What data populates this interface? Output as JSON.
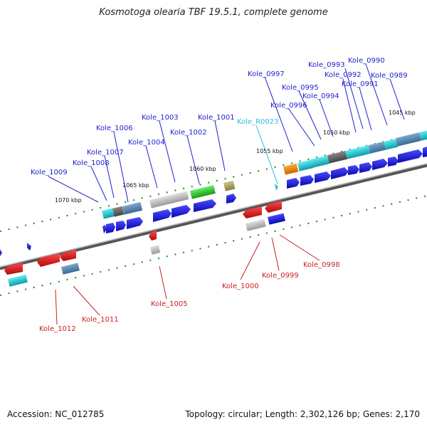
{
  "title": "Kosmotoga olearia TBF 19.5.1, complete genome",
  "footer": {
    "accession": "Accession: NC_012785",
    "summary": "Topology: circular; Length: 2,302,126 bp; Genes: 2,170"
  },
  "colors": {
    "forward_label": "#1f1fcc",
    "reverse_label": "#cc1f1f",
    "rna_label": "#33bbdd",
    "cds_forward": "#1a1add",
    "cds_reverse": "#dd1a1a",
    "backbone": "#808080",
    "tick": "#1a8a1a"
  },
  "scale_labels": [
    "1045 kbp",
    "1050 kbp",
    "1055 kbp",
    "1060 kbp",
    "1065 kbp",
    "1070 kbp"
  ],
  "gene_labels": {
    "forward": [
      "Kole_0990",
      "Kole_0993",
      "Kole_0989",
      "Kole_0992",
      "Kole_0997",
      "Kole_0995",
      "Kole_0991",
      "Kole_0994",
      "Kole_0996",
      "Kole_1003",
      "Kole_1001",
      "Kole_1006",
      "Kole_1002",
      "Kole_1004",
      "Kole_1007",
      "Kole_1008",
      "Kole_1009"
    ],
    "rna": [
      "Kole_R0023"
    ],
    "reverse": [
      "Kole_0998",
      "Kole_0999",
      "Kole_1000",
      "Kole_1005",
      "Kole_1011",
      "Kole_1012"
    ]
  }
}
